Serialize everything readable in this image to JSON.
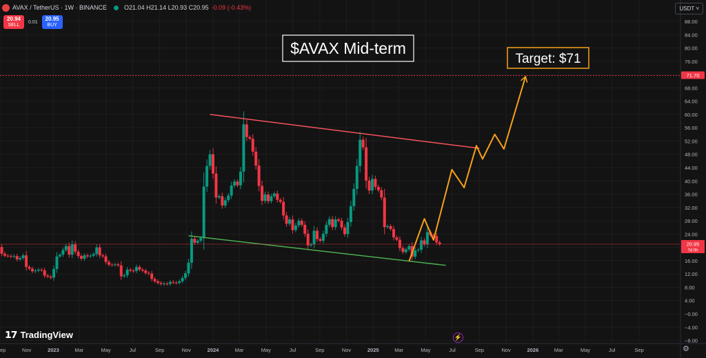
{
  "header": {
    "symbol": "AVAX / TetherUS · 1W · BINANCE",
    "ohlc": "O21.04 H21.14 L20.93 C20.95",
    "change": "-0.09 (-0.43%)"
  },
  "trade": {
    "sell_price": "20.94",
    "sell_label": "SELL",
    "spread": "0.01",
    "buy_price": "20.95",
    "buy_label": "BUY"
  },
  "currency": "USDT ˅",
  "brand": "TradingView",
  "icons": {
    "logo": "avax-logo-icon",
    "status": "market-status-dot-icon",
    "lightning": "lightning-icon",
    "settings": "gear-icon"
  },
  "colors": {
    "up": "#089981",
    "down": "#f23645",
    "resistance": "#f7525f",
    "support": "#4caf50",
    "projection": "#f7a21b",
    "target_line": "#f23645"
  },
  "chart_data": {
    "type": "candlestick",
    "title": "$AVAX Mid-term",
    "annotation": "Target: $71",
    "y_ticks": [
      -8,
      -4,
      0,
      4,
      8,
      12,
      16,
      20,
      24,
      28,
      32,
      36,
      40,
      44,
      48,
      52,
      56,
      60,
      64,
      68,
      72,
      76,
      80,
      84,
      88
    ],
    "y_tick_labels": [
      "−8.00",
      "−4.00",
      "−0.00",
      "4.00",
      "8.00",
      "12.00",
      "16.00",
      "20.00",
      "24.00",
      "28.00",
      "32.00",
      "36.00",
      "40.00",
      "44.00",
      "48.00",
      "52.00",
      "56.00",
      "60.00",
      "64.00",
      "68.00",
      "72.00",
      "76.00",
      "80.00",
      "84.00",
      "88.00"
    ],
    "ylim": [
      -10,
      92
    ],
    "x_ticks": [
      {
        "label": "ep",
        "date": "2022-09-01"
      },
      {
        "label": "Nov",
        "date": "2022-11-01"
      },
      {
        "label": "2023",
        "date": "2023-01-01"
      },
      {
        "label": "Mar",
        "date": "2023-03-01"
      },
      {
        "label": "May",
        "date": "2023-05-01"
      },
      {
        "label": "Jul",
        "date": "2023-07-01"
      },
      {
        "label": "Sep",
        "date": "2023-09-01"
      },
      {
        "label": "Nov",
        "date": "2023-11-01"
      },
      {
        "label": "2024",
        "date": "2024-01-01"
      },
      {
        "label": "Mar",
        "date": "2024-03-01"
      },
      {
        "label": "May",
        "date": "2024-05-01"
      },
      {
        "label": "Jul",
        "date": "2024-07-01"
      },
      {
        "label": "Sep",
        "date": "2024-09-01"
      },
      {
        "label": "Nov",
        "date": "2024-11-01"
      },
      {
        "label": "2025",
        "date": "2025-01-01"
      },
      {
        "label": "Mar",
        "date": "2025-03-01"
      },
      {
        "label": "May",
        "date": "2025-05-01"
      },
      {
        "label": "Jul",
        "date": "2025-07-01"
      },
      {
        "label": "Sep",
        "date": "2025-09-01"
      },
      {
        "label": "Nov",
        "date": "2025-11-01"
      },
      {
        "label": "2026",
        "date": "2026-01-01"
      },
      {
        "label": "Mar",
        "date": "2026-03-01"
      },
      {
        "label": "May",
        "date": "2026-05-01"
      },
      {
        "label": "Jul",
        "date": "2026-07-01"
      },
      {
        "label": "Sep",
        "date": "2026-09-01"
      }
    ],
    "candles": [
      {
        "x": "2022-08-29",
        "c": 20.1
      },
      {
        "x": "2022-09-05",
        "c": 18.1
      },
      {
        "x": "2022-09-12",
        "c": 17.5
      },
      {
        "x": "2022-09-19",
        "c": 17.4
      },
      {
        "x": "2022-09-26",
        "c": 17.2
      },
      {
        "x": "2022-10-03",
        "c": 17.4
      },
      {
        "x": "2022-10-10",
        "c": 16.4
      },
      {
        "x": "2022-10-17",
        "c": 16.8
      },
      {
        "x": "2022-10-24",
        "c": 17.6
      },
      {
        "x": "2022-10-31",
        "c": 14.1
      },
      {
        "x": "2022-11-07",
        "c": 13.6
      },
      {
        "x": "2022-11-14",
        "c": 12.8
      },
      {
        "x": "2022-11-21",
        "c": 13.0
      },
      {
        "x": "2022-11-28",
        "c": 13.3
      },
      {
        "x": "2022-12-05",
        "c": 13.1
      },
      {
        "x": "2022-12-12",
        "c": 11.5
      },
      {
        "x": "2022-12-19",
        "c": 11.2
      },
      {
        "x": "2022-12-26",
        "c": 10.9
      },
      {
        "x": "2023-01-02",
        "c": 13.5
      },
      {
        "x": "2023-01-09",
        "c": 17.3
      },
      {
        "x": "2023-01-16",
        "c": 17.8
      },
      {
        "x": "2023-01-23",
        "c": 19.2
      },
      {
        "x": "2023-01-30",
        "c": 20.4
      },
      {
        "x": "2023-02-06",
        "c": 17.8
      },
      {
        "x": "2023-02-13",
        "c": 20.9
      },
      {
        "x": "2023-02-20",
        "c": 18.7
      },
      {
        "x": "2023-02-27",
        "c": 17.4
      },
      {
        "x": "2023-03-06",
        "c": 16.6
      },
      {
        "x": "2023-03-13",
        "c": 17.6
      },
      {
        "x": "2023-03-20",
        "c": 17.3
      },
      {
        "x": "2023-03-27",
        "c": 17.5
      },
      {
        "x": "2023-04-03",
        "c": 18.0
      },
      {
        "x": "2023-04-10",
        "c": 20.0
      },
      {
        "x": "2023-04-17",
        "c": 17.6
      },
      {
        "x": "2023-04-24",
        "c": 17.3
      },
      {
        "x": "2023-05-01",
        "c": 15.6
      },
      {
        "x": "2023-05-08",
        "c": 14.8
      },
      {
        "x": "2023-05-15",
        "c": 14.7
      },
      {
        "x": "2023-05-22",
        "c": 14.9
      },
      {
        "x": "2023-05-29",
        "c": 14.6
      },
      {
        "x": "2023-06-05",
        "c": 11.3
      },
      {
        "x": "2023-06-12",
        "c": 11.6
      },
      {
        "x": "2023-06-19",
        "c": 13.3
      },
      {
        "x": "2023-06-26",
        "c": 13.0
      },
      {
        "x": "2023-07-03",
        "c": 12.9
      },
      {
        "x": "2023-07-10",
        "c": 14.1
      },
      {
        "x": "2023-07-17",
        "c": 13.3
      },
      {
        "x": "2023-07-24",
        "c": 13.0
      },
      {
        "x": "2023-07-31",
        "c": 12.3
      },
      {
        "x": "2023-08-07",
        "c": 12.1
      },
      {
        "x": "2023-08-14",
        "c": 10.5
      },
      {
        "x": "2023-08-21",
        "c": 9.8
      },
      {
        "x": "2023-08-28",
        "c": 9.3
      },
      {
        "x": "2023-09-04",
        "c": 9.0
      },
      {
        "x": "2023-09-11",
        "c": 9.1
      },
      {
        "x": "2023-09-18",
        "c": 9.0
      },
      {
        "x": "2023-09-25",
        "c": 9.6
      },
      {
        "x": "2023-10-02",
        "c": 9.4
      },
      {
        "x": "2023-10-09",
        "c": 9.3
      },
      {
        "x": "2023-10-16",
        "c": 9.8
      },
      {
        "x": "2023-10-23",
        "c": 10.8
      },
      {
        "x": "2023-10-30",
        "c": 12.2
      },
      {
        "x": "2023-11-06",
        "c": 15.4
      },
      {
        "x": "2023-11-13",
        "c": 22.6
      },
      {
        "x": "2023-11-20",
        "c": 21.4
      },
      {
        "x": "2023-11-27",
        "c": 22.0
      },
      {
        "x": "2023-12-04",
        "c": 22.8
      },
      {
        "x": "2023-12-11",
        "c": 38.3
      },
      {
        "x": "2023-12-18",
        "c": 44.5
      },
      {
        "x": "2023-12-25",
        "c": 48.0
      },
      {
        "x": "2024-01-01",
        "c": 42.2
      },
      {
        "x": "2024-01-08",
        "c": 35.0
      },
      {
        "x": "2024-01-15",
        "c": 35.4
      },
      {
        "x": "2024-01-22",
        "c": 32.6
      },
      {
        "x": "2024-01-29",
        "c": 34.2
      },
      {
        "x": "2024-02-05",
        "c": 35.6
      },
      {
        "x": "2024-02-12",
        "c": 38.6
      },
      {
        "x": "2024-02-19",
        "c": 39.8
      },
      {
        "x": "2024-02-26",
        "c": 38.7
      },
      {
        "x": "2024-03-04",
        "c": 42.8
      },
      {
        "x": "2024-03-11",
        "c": 57.0
      },
      {
        "x": "2024-03-18",
        "c": 53.2
      },
      {
        "x": "2024-03-25",
        "c": 52.7
      },
      {
        "x": "2024-04-01",
        "c": 48.8
      },
      {
        "x": "2024-04-08",
        "c": 44.6
      },
      {
        "x": "2024-04-15",
        "c": 38.5
      },
      {
        "x": "2024-04-22",
        "c": 34.0
      },
      {
        "x": "2024-04-29",
        "c": 35.9
      },
      {
        "x": "2024-05-06",
        "c": 33.9
      },
      {
        "x": "2024-05-13",
        "c": 35.4
      },
      {
        "x": "2024-05-20",
        "c": 36.2
      },
      {
        "x": "2024-05-27",
        "c": 34.3
      },
      {
        "x": "2024-06-03",
        "c": 33.7
      },
      {
        "x": "2024-06-10",
        "c": 29.6
      },
      {
        "x": "2024-06-17",
        "c": 27.1
      },
      {
        "x": "2024-06-24",
        "c": 28.4
      },
      {
        "x": "2024-07-01",
        "c": 25.2
      },
      {
        "x": "2024-07-08",
        "c": 26.6
      },
      {
        "x": "2024-07-15",
        "c": 28.0
      },
      {
        "x": "2024-07-22",
        "c": 26.8
      },
      {
        "x": "2024-07-29",
        "c": 24.1
      },
      {
        "x": "2024-08-05",
        "c": 20.6
      },
      {
        "x": "2024-08-12",
        "c": 20.9
      },
      {
        "x": "2024-08-19",
        "c": 25.0
      },
      {
        "x": "2024-08-26",
        "c": 22.5
      },
      {
        "x": "2024-09-02",
        "c": 22.0
      },
      {
        "x": "2024-09-09",
        "c": 24.1
      },
      {
        "x": "2024-09-16",
        "c": 26.8
      },
      {
        "x": "2024-09-23",
        "c": 28.5
      },
      {
        "x": "2024-09-30",
        "c": 26.1
      },
      {
        "x": "2024-10-07",
        "c": 28.4
      },
      {
        "x": "2024-10-14",
        "c": 28.0
      },
      {
        "x": "2024-10-21",
        "c": 26.0
      },
      {
        "x": "2024-10-28",
        "c": 24.0
      },
      {
        "x": "2024-11-04",
        "c": 27.6
      },
      {
        "x": "2024-11-11",
        "c": 32.4
      },
      {
        "x": "2024-11-18",
        "c": 37.6
      },
      {
        "x": "2024-11-25",
        "c": 44.5
      },
      {
        "x": "2024-12-02",
        "c": 52.4
      },
      {
        "x": "2024-12-09",
        "c": 50.1
      },
      {
        "x": "2024-12-16",
        "c": 40.1
      },
      {
        "x": "2024-12-23",
        "c": 37.1
      },
      {
        "x": "2024-12-30",
        "c": 40.6
      },
      {
        "x": "2025-01-06",
        "c": 38.2
      },
      {
        "x": "2025-01-13",
        "c": 37.2
      },
      {
        "x": "2025-01-20",
        "c": 35.0
      },
      {
        "x": "2025-01-27",
        "c": 26.1
      },
      {
        "x": "2025-02-03",
        "c": 26.4
      },
      {
        "x": "2025-02-10",
        "c": 25.5
      },
      {
        "x": "2025-02-17",
        "c": 23.0
      },
      {
        "x": "2025-02-24",
        "c": 22.3
      },
      {
        "x": "2025-03-03",
        "c": 19.8
      },
      {
        "x": "2025-03-10",
        "c": 18.6
      },
      {
        "x": "2025-03-17",
        "c": 19.4
      },
      {
        "x": "2025-03-24",
        "c": 20.4
      },
      {
        "x": "2025-03-31",
        "c": 17.2
      },
      {
        "x": "2025-04-07",
        "c": 19.1
      },
      {
        "x": "2025-04-14",
        "c": 19.3
      },
      {
        "x": "2025-04-21",
        "c": 22.1
      },
      {
        "x": "2025-04-28",
        "c": 20.9
      },
      {
        "x": "2025-05-05",
        "c": 24.6
      },
      {
        "x": "2025-05-12",
        "c": 23.7
      },
      {
        "x": "2025-05-19",
        "c": 23.4
      },
      {
        "x": "2025-05-26",
        "c": 21.5
      },
      {
        "x": "2025-06-02",
        "c": 20.95
      }
    ],
    "start_open": 21.0,
    "price_labels": [
      {
        "value": 71.7,
        "label": "71.70",
        "color": "#f23645",
        "dashed": true
      },
      {
        "value": 20.95,
        "label": "20.95",
        "sub": "7d 0h",
        "color": "#f23645",
        "dashed": false
      }
    ],
    "resistance": [
      {
        "x": "2023-12-25",
        "y": 60.0
      },
      {
        "x": "2025-09-01",
        "y": 49.8
      }
    ],
    "support": [
      {
        "x": "2023-11-06",
        "y": 23.5
      },
      {
        "x": "2025-06-16",
        "y": 14.6
      }
    ],
    "projection": [
      {
        "x": "2025-03-24",
        "y": 15.8
      },
      {
        "x": "2025-04-28",
        "y": 28.6
      },
      {
        "x": "2025-05-19",
        "y": 22.2
      },
      {
        "x": "2025-06-30",
        "y": 43.4
      },
      {
        "x": "2025-07-28",
        "y": 38.0
      },
      {
        "x": "2025-08-25",
        "y": 50.6
      },
      {
        "x": "2025-09-08",
        "y": 46.6
      },
      {
        "x": "2025-10-06",
        "y": 54.0
      },
      {
        "x": "2025-10-27",
        "y": 49.6
      },
      {
        "x": "2025-12-15",
        "y": 71.2
      }
    ]
  }
}
